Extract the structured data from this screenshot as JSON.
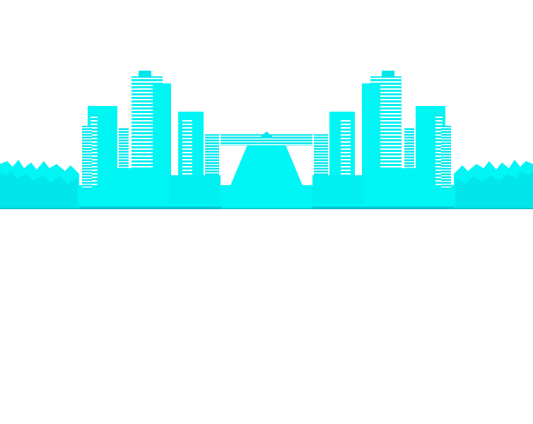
{
  "scene": {
    "description_kind": "mirrored-city-skyline",
    "colors": {
      "background": "#ffffff",
      "skyline_fill": "#00f5f5",
      "skyline_dark": "#00d8e0",
      "window_light": "#ffffff",
      "edge_dark": "#0aa9b3"
    }
  }
}
